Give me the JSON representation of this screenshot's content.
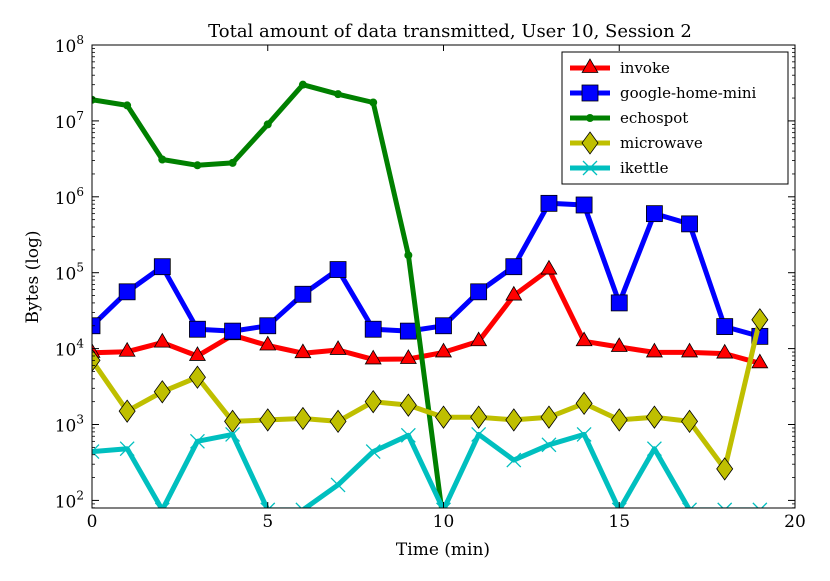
{
  "chart_data": {
    "type": "line",
    "title": "Total amount of data transmitted, User 10, Session 2",
    "xlabel": "Time (min)",
    "ylabel": "Bytes (log)",
    "xlim": [
      0,
      20
    ],
    "ylim_log10": [
      1.9,
      8
    ],
    "yscale": "log",
    "legend_position": "top-right",
    "x_ticks": [
      0,
      5,
      10,
      15,
      20
    ],
    "x_tick_labels": [
      "0",
      "5",
      "10",
      "15",
      "20"
    ],
    "y_ticks_log10": [
      2,
      3,
      4,
      5,
      6,
      7,
      8
    ],
    "y_tick_bases": [
      "10",
      "10",
      "10",
      "10",
      "10",
      "10",
      "10"
    ],
    "y_tick_exps": [
      "2",
      "3",
      "4",
      "5",
      "6",
      "7",
      "8"
    ],
    "x": [
      0,
      1,
      2,
      3,
      4,
      5,
      6,
      7,
      8,
      9,
      10,
      11,
      12,
      13,
      14,
      15,
      16,
      17,
      18,
      19
    ],
    "series": [
      {
        "name": "invoke",
        "color": "#ff0000",
        "marker": "triangle",
        "values": [
          8800,
          9100,
          12000,
          8000,
          15000,
          11000,
          8700,
          9600,
          7200,
          7300,
          8900,
          12500,
          50000,
          110000,
          12500,
          10500,
          8900,
          8900,
          8600,
          6400
        ]
      },
      {
        "name": "google-home-mini",
        "color": "#0000ff",
        "marker": "square",
        "values": [
          20000,
          56000,
          120000,
          18000,
          17000,
          20000,
          52000,
          110000,
          18000,
          17000,
          20000,
          56000,
          120000,
          820000,
          780000,
          40000,
          600000,
          440000,
          19500,
          14500
        ]
      },
      {
        "name": "echospot",
        "color": "#008000",
        "marker": "circle",
        "values": [
          19000000,
          16000000,
          3100000,
          2600000,
          2800000,
          9000000,
          30000000,
          22500000,
          17500000,
          170000,
          50,
          null,
          null,
          null,
          null,
          null,
          null,
          null,
          null,
          null
        ]
      },
      {
        "name": "microwave",
        "color": "#bfbf00",
        "marker": "diamond",
        "values": [
          7000,
          1500,
          2700,
          4200,
          1100,
          1150,
          1200,
          1100,
          2000,
          1800,
          1250,
          1250,
          1150,
          1250,
          1900,
          1150,
          1250,
          1100,
          260,
          24000
        ]
      },
      {
        "name": "ikettle",
        "color": "#00bfbf",
        "marker": "x",
        "values": [
          440,
          480,
          75,
          600,
          740,
          75,
          75,
          160,
          440,
          720,
          75,
          740,
          340,
          540,
          740,
          75,
          480,
          75,
          75,
          75
        ]
      }
    ]
  }
}
